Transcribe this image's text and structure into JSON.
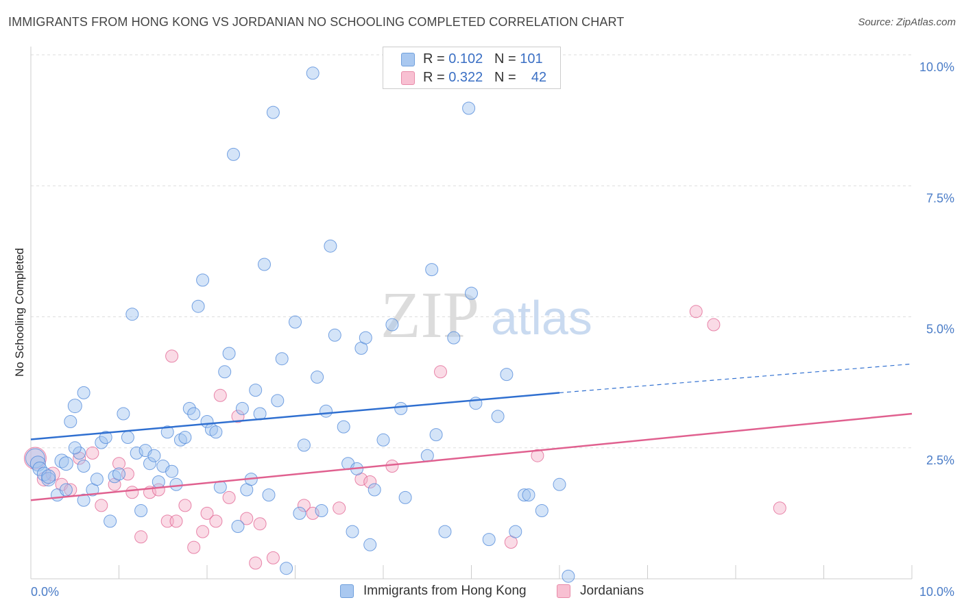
{
  "title": "IMMIGRANTS FROM HONG KONG VS JORDANIAN NO SCHOOLING COMPLETED CORRELATION CHART",
  "source": "Source: ZipAtlas.com",
  "watermark": {
    "zip": "ZIP",
    "atlas": "atlas"
  },
  "legend": {
    "rows": [
      {
        "r_label": "R = ",
        "r_value": "0.102",
        "n_label": "N = ",
        "n_value": "101",
        "color": "#a9c8f0",
        "border": "#6f9fdc"
      },
      {
        "r_label": "R = ",
        "r_value": "0.322",
        "n_label": "N = ",
        "n_value": "42",
        "color": "#f8c0d2",
        "border": "#e88aa8"
      }
    ]
  },
  "chart_data": {
    "type": "scatter",
    "ylabel": "No Schooling Completed",
    "x_tick_labels": [
      "0.0%",
      "10.0%"
    ],
    "y_tick_labels": [
      "10.0%",
      "7.5%",
      "5.0%",
      "2.5%"
    ],
    "xlim": [
      0,
      10
    ],
    "ylim": [
      0,
      10
    ],
    "y_ticks": [
      10,
      7.5,
      5.0,
      2.5
    ],
    "grid": true,
    "colors": {
      "blue": "#4a84d8",
      "blue_fill": "rgba(160,195,240,0.45)",
      "pink": "#e05f8f",
      "pink_fill": "rgba(245,175,200,0.45)",
      "tick": "#4a7cc7"
    },
    "series": [
      {
        "name": "Immigrants from Hong Kong",
        "color": "#4a84d8",
        "trend": {
          "x0": 0,
          "y0": 2.66,
          "x1": 6.0,
          "y1": 3.55,
          "dash_to_x": 10.0,
          "dash_to_y": 4.1
        },
        "points": [
          [
            0.05,
            2.3
          ],
          [
            0.08,
            2.2
          ],
          [
            0.1,
            2.1
          ],
          [
            0.15,
            2.0
          ],
          [
            0.2,
            1.9
          ],
          [
            0.2,
            1.95
          ],
          [
            0.3,
            1.6
          ],
          [
            0.35,
            2.25
          ],
          [
            0.4,
            2.2
          ],
          [
            0.4,
            1.7
          ],
          [
            0.5,
            3.3
          ],
          [
            0.45,
            3.0
          ],
          [
            0.55,
            2.4
          ],
          [
            0.5,
            2.5
          ],
          [
            0.6,
            1.5
          ],
          [
            0.6,
            2.15
          ],
          [
            0.6,
            3.55
          ],
          [
            0.7,
            1.7
          ],
          [
            0.75,
            1.9
          ],
          [
            0.8,
            2.6
          ],
          [
            0.85,
            2.7
          ],
          [
            0.9,
            1.1
          ],
          [
            0.95,
            1.95
          ],
          [
            1.0,
            2.0
          ],
          [
            1.05,
            3.15
          ],
          [
            1.1,
            2.7
          ],
          [
            1.15,
            5.05
          ],
          [
            1.2,
            2.4
          ],
          [
            1.25,
            1.3
          ],
          [
            1.3,
            2.45
          ],
          [
            1.35,
            2.2
          ],
          [
            1.4,
            2.35
          ],
          [
            1.45,
            1.85
          ],
          [
            1.5,
            2.15
          ],
          [
            1.55,
            2.8
          ],
          [
            1.6,
            2.05
          ],
          [
            1.65,
            1.8
          ],
          [
            1.7,
            2.65
          ],
          [
            1.75,
            2.7
          ],
          [
            1.8,
            3.25
          ],
          [
            1.85,
            3.15
          ],
          [
            1.9,
            5.2
          ],
          [
            1.95,
            5.7
          ],
          [
            2.0,
            3.0
          ],
          [
            2.05,
            2.85
          ],
          [
            2.1,
            2.8
          ],
          [
            2.15,
            1.75
          ],
          [
            2.2,
            3.95
          ],
          [
            2.25,
            4.3
          ],
          [
            2.3,
            8.1
          ],
          [
            2.35,
            1.0
          ],
          [
            2.4,
            3.25
          ],
          [
            2.45,
            1.7
          ],
          [
            2.5,
            1.9
          ],
          [
            2.55,
            3.6
          ],
          [
            2.6,
            3.15
          ],
          [
            2.65,
            6.0
          ],
          [
            2.7,
            1.6
          ],
          [
            2.75,
            8.9
          ],
          [
            2.8,
            3.4
          ],
          [
            2.85,
            4.2
          ],
          [
            2.9,
            0.2
          ],
          [
            3.0,
            4.9
          ],
          [
            3.05,
            1.25
          ],
          [
            3.1,
            2.55
          ],
          [
            3.2,
            9.65
          ],
          [
            3.25,
            3.85
          ],
          [
            3.3,
            1.3
          ],
          [
            3.35,
            3.2
          ],
          [
            3.4,
            6.35
          ],
          [
            3.45,
            4.65
          ],
          [
            3.55,
            2.9
          ],
          [
            3.6,
            2.2
          ],
          [
            3.65,
            0.9
          ],
          [
            3.7,
            2.1
          ],
          [
            3.75,
            4.4
          ],
          [
            3.8,
            4.6
          ],
          [
            3.85,
            0.65
          ],
          [
            3.9,
            1.7
          ],
          [
            4.0,
            2.65
          ],
          [
            4.1,
            4.85
          ],
          [
            4.2,
            3.25
          ],
          [
            4.25,
            1.55
          ],
          [
            4.35,
            9.9
          ],
          [
            4.55,
            5.9
          ],
          [
            4.6,
            2.75
          ],
          [
            4.7,
            0.9
          ],
          [
            4.8,
            4.6
          ],
          [
            4.97,
            8.98
          ],
          [
            5.0,
            5.45
          ],
          [
            5.05,
            3.35
          ],
          [
            5.2,
            0.75
          ],
          [
            5.3,
            3.1
          ],
          [
            5.4,
            3.9
          ],
          [
            5.5,
            0.9
          ],
          [
            5.6,
            1.6
          ],
          [
            5.65,
            1.6
          ],
          [
            5.8,
            1.3
          ],
          [
            6.0,
            1.8
          ],
          [
            6.1,
            0.05
          ],
          [
            4.5,
            2.35
          ]
        ],
        "radius": [
          14,
          11,
          10,
          10,
          10,
          10,
          9,
          10,
          10,
          9,
          10,
          9,
          9,
          9,
          9,
          9,
          9,
          9,
          9,
          9,
          9,
          9,
          9,
          9,
          9,
          9,
          9,
          9,
          9,
          9,
          9,
          9,
          9,
          9,
          9,
          9,
          9,
          9,
          9,
          9,
          9,
          9,
          9,
          9,
          9,
          9,
          9,
          9,
          9,
          9,
          9,
          9,
          9,
          9,
          9,
          9,
          9,
          9,
          9,
          9,
          9,
          9,
          9,
          9,
          9,
          9,
          9,
          9,
          9,
          9,
          9,
          9,
          9,
          9,
          9,
          9,
          9,
          9,
          9,
          9,
          9,
          9,
          9,
          9,
          9,
          9,
          9,
          9,
          9,
          9,
          9,
          9,
          9,
          9,
          9,
          9,
          9,
          9,
          9,
          9,
          9
        ]
      },
      {
        "name": "Jordanians",
        "color": "#e05f8f",
        "trend": {
          "x0": 0,
          "y0": 1.5,
          "x1": 10.0,
          "y1": 3.15
        },
        "points": [
          [
            0.05,
            2.3
          ],
          [
            0.15,
            1.9
          ],
          [
            0.25,
            2.0
          ],
          [
            0.35,
            1.8
          ],
          [
            0.45,
            1.7
          ],
          [
            0.55,
            2.3
          ],
          [
            0.7,
            2.4
          ],
          [
            0.8,
            1.4
          ],
          [
            0.95,
            1.8
          ],
          [
            1.0,
            2.2
          ],
          [
            1.1,
            2.0
          ],
          [
            1.15,
            1.65
          ],
          [
            1.25,
            0.8
          ],
          [
            1.35,
            1.65
          ],
          [
            1.45,
            1.7
          ],
          [
            1.55,
            1.1
          ],
          [
            1.6,
            4.25
          ],
          [
            1.65,
            1.1
          ],
          [
            1.75,
            1.4
          ],
          [
            1.85,
            0.6
          ],
          [
            1.95,
            0.9
          ],
          [
            2.0,
            1.25
          ],
          [
            2.1,
            1.1
          ],
          [
            2.15,
            3.5
          ],
          [
            2.25,
            1.55
          ],
          [
            2.35,
            3.1
          ],
          [
            2.45,
            1.15
          ],
          [
            2.55,
            0.3
          ],
          [
            2.6,
            1.05
          ],
          [
            2.75,
            0.4
          ],
          [
            3.1,
            1.4
          ],
          [
            3.2,
            1.25
          ],
          [
            3.5,
            1.35
          ],
          [
            3.75,
            1.9
          ],
          [
            3.85,
            1.85
          ],
          [
            4.1,
            2.15
          ],
          [
            4.65,
            3.95
          ],
          [
            5.45,
            0.7
          ],
          [
            5.75,
            2.35
          ],
          [
            7.55,
            5.1
          ],
          [
            7.75,
            4.85
          ],
          [
            8.5,
            1.35
          ]
        ],
        "radius": [
          16,
          10,
          10,
          9,
          9,
          9,
          9,
          9,
          9,
          9,
          9,
          9,
          9,
          9,
          9,
          9,
          9,
          9,
          9,
          9,
          9,
          9,
          9,
          9,
          9,
          9,
          9,
          9,
          9,
          9,
          9,
          9,
          9,
          9,
          9,
          9,
          9,
          9,
          9,
          9,
          9,
          9
        ]
      }
    ],
    "legend_labels": [
      "Immigrants from Hong Kong",
      "Jordanians"
    ]
  }
}
